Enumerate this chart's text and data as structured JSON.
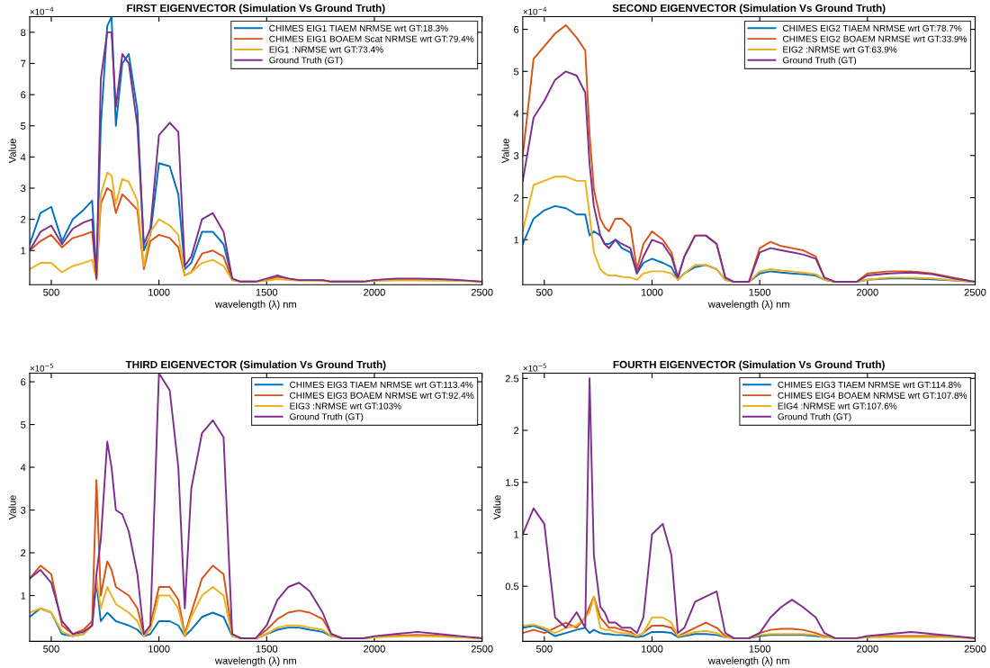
{
  "chart_data": [
    {
      "type": "line",
      "title": "FIRST EIGENVECTOR (Simulation Vs Ground Truth)",
      "xlabel": "wavelength (λ) nm",
      "ylabel": "Value",
      "annotations": [
        "×10$^{−4}$"
      ],
      "xlim": [
        400,
        2500
      ],
      "xticks": [
        500,
        1000,
        1500,
        2000,
        2500
      ],
      "ylim": [
        -0.1,
        8.5
      ],
      "yticks": [
        1,
        2,
        3,
        4,
        5,
        6,
        7,
        8
      ],
      "legend": "top right",
      "grid": false,
      "x": [
        400,
        450,
        500,
        550,
        600,
        650,
        690,
        710,
        730,
        760,
        780,
        800,
        830,
        860,
        900,
        930,
        960,
        1000,
        1050,
        1090,
        1120,
        1150,
        1200,
        1250,
        1300,
        1340,
        1380,
        1450,
        1500,
        1550,
        1600,
        1650,
        1700,
        1760,
        1800,
        1850,
        1950,
        2000,
        2100,
        2200,
        2300,
        2400,
        2500
      ],
      "series": [
        {
          "name": "CHIMES EIG1 TIAEM NRMSE wrt GT:18.3%",
          "color": "#0072bd",
          "values": [
            1.2,
            2.2,
            2.4,
            1.3,
            2.0,
            2.3,
            2.6,
            0.2,
            5.0,
            8.2,
            8.5,
            5.0,
            7.0,
            7.3,
            5.5,
            1.0,
            1.5,
            3.8,
            3.7,
            2.8,
            0.4,
            0.6,
            1.6,
            1.6,
            1.2,
            0.1,
            null,
            null,
            null,
            null,
            null,
            null,
            null,
            null,
            null,
            null,
            null,
            null,
            null,
            null,
            null,
            null,
            null
          ]
        },
        {
          "name": "CHIMES EIG1 BOAEM Scat NRMSE wrt GT:79.4%",
          "color": "#d95319",
          "values": [
            1.0,
            1.3,
            1.5,
            1.1,
            1.4,
            1.5,
            1.6,
            0.1,
            2.5,
            3.0,
            2.9,
            2.2,
            2.8,
            2.6,
            2.3,
            0.4,
            1.3,
            1.5,
            1.4,
            1.1,
            0.2,
            0.3,
            0.9,
            1.0,
            0.8,
            0.05,
            0,
            0,
            0.05,
            0.15,
            0.1,
            0.05,
            0.05,
            0.05,
            0,
            0,
            0,
            0.05,
            0.08,
            0.08,
            0.06,
            0.04,
            0
          ]
        },
        {
          "name": "EIG1 :NRMSE wrt GT:73.4%",
          "color": "#edb120",
          "values": [
            0.4,
            0.6,
            0.6,
            0.3,
            0.5,
            0.6,
            0.7,
            0.05,
            2.8,
            3.5,
            3.4,
            2.5,
            3.3,
            3.2,
            2.6,
            0.5,
            1.6,
            2.0,
            1.8,
            1.5,
            0.2,
            0.3,
            0.6,
            0.7,
            0.5,
            0.05,
            0,
            0,
            0.03,
            0.08,
            0.05,
            0.03,
            0.03,
            0.02,
            0,
            0,
            0,
            0.02,
            0.04,
            0.04,
            0.03,
            0.02,
            0
          ]
        },
        {
          "name": "Ground Truth (GT)",
          "color": "#7e2f8e",
          "values": [
            1.0,
            1.6,
            1.8,
            1.2,
            1.7,
            1.9,
            2.0,
            0.1,
            6.5,
            8.0,
            8.0,
            5.6,
            7.3,
            7.0,
            5.0,
            1.2,
            1.7,
            4.7,
            5.1,
            4.8,
            0.5,
            0.8,
            2.0,
            2.2,
            1.6,
            0.1,
            0,
            0,
            0.1,
            0.2,
            0.1,
            0.05,
            0.05,
            0.05,
            0,
            0,
            0,
            0.05,
            0.1,
            0.1,
            0.08,
            0.05,
            0
          ]
        }
      ]
    },
    {
      "type": "line",
      "title": "SECOND EIGENVECTOR (Simulation Vs Ground Truth)",
      "xlabel": "wavelength (λ) nm",
      "ylabel": "Value",
      "annotations": [
        "×10$^{−4}$"
      ],
      "xlim": [
        400,
        2500
      ],
      "xticks": [
        500,
        1000,
        1500,
        2000,
        2500
      ],
      "ylim": [
        -0.07,
        6.3
      ],
      "yticks": [
        1,
        2,
        3,
        4,
        5,
        6
      ],
      "legend": "top right",
      "grid": false,
      "x": [
        400,
        450,
        500,
        550,
        600,
        650,
        690,
        710,
        730,
        760,
        780,
        800,
        830,
        860,
        900,
        930,
        960,
        1000,
        1050,
        1090,
        1120,
        1150,
        1200,
        1250,
        1300,
        1340,
        1380,
        1450,
        1500,
        1550,
        1600,
        1650,
        1700,
        1760,
        1800,
        1850,
        1950,
        2000,
        2100,
        2200,
        2300,
        2400,
        2500
      ],
      "series": [
        {
          "name": "CHIMES EIG2 TIAEM NRMSE wrt GT:78.7%",
          "color": "#0072bd",
          "values": [
            0.9,
            1.5,
            1.7,
            1.8,
            1.75,
            1.6,
            1.6,
            1.1,
            1.2,
            1.1,
            0.9,
            0.9,
            1.0,
            0.8,
            0.7,
            0.2,
            0.45,
            0.55,
            0.45,
            0.35,
            0.05,
            0.2,
            0.35,
            0.4,
            0.3,
            0.05,
            0,
            0,
            0.2,
            0.25,
            0.22,
            0.2,
            0.18,
            0.15,
            0.05,
            0,
            0,
            0.05,
            0.08,
            0.08,
            0.06,
            0.03,
            0
          ]
        },
        {
          "name": "CHIMES EIG2 BOAEM NRMSE wrt GT:33.9%",
          "color": "#d95319",
          "values": [
            3.0,
            5.3,
            5.6,
            5.9,
            6.1,
            5.8,
            5.5,
            3.5,
            2.2,
            1.5,
            1.3,
            1.2,
            1.5,
            1.5,
            1.3,
            0.3,
            0.9,
            1.2,
            1.0,
            0.7,
            0.1,
            0.6,
            1.1,
            1.1,
            0.9,
            0.1,
            0,
            0,
            0.8,
            0.95,
            0.85,
            0.8,
            0.75,
            0.6,
            0.1,
            0,
            0,
            0.2,
            0.25,
            0.25,
            0.2,
            0.1,
            0
          ]
        },
        {
          "name": "EIG2 :NRMSE wrt GT:63.9%",
          "color": "#edb120",
          "values": [
            1.2,
            2.3,
            2.4,
            2.5,
            2.5,
            2.4,
            2.4,
            1.6,
            0.7,
            0.3,
            0.2,
            0.15,
            0.15,
            0.12,
            0.1,
            0.05,
            0.2,
            0.25,
            0.25,
            0.2,
            0.05,
            0.2,
            0.4,
            0.4,
            0.3,
            0.05,
            0,
            0,
            0.25,
            0.3,
            0.27,
            0.25,
            0.22,
            0.18,
            0.05,
            0,
            0,
            0.05,
            0.1,
            0.1,
            0.08,
            0.04,
            0
          ]
        },
        {
          "name": "Ground Truth (GT)",
          "color": "#7e2f8e",
          "values": [
            2.4,
            3.9,
            4.3,
            4.8,
            5.0,
            4.9,
            4.5,
            2.8,
            1.8,
            1.1,
            0.9,
            0.8,
            1.0,
            0.9,
            0.8,
            0.2,
            0.6,
            1.0,
            0.9,
            0.6,
            0.1,
            0.6,
            1.1,
            1.1,
            0.9,
            0.1,
            0,
            0,
            0.7,
            0.8,
            0.75,
            0.7,
            0.65,
            0.55,
            0.1,
            0,
            0,
            0.15,
            0.2,
            0.22,
            0.18,
            0.08,
            0
          ]
        }
      ]
    },
    {
      "type": "line",
      "title": "THIRD EIGENVECTOR (Simulation Vs Ground Truth)",
      "xlabel": "wavelength (λ) nm",
      "ylabel": "Value",
      "annotations": [
        "×10$^{−5}$"
      ],
      "xlim": [
        400,
        2500
      ],
      "xticks": [
        500,
        1000,
        1500,
        2000,
        2500
      ],
      "ylim": [
        -0.07,
        6.2
      ],
      "yticks": [
        1,
        2,
        3,
        4,
        5,
        6
      ],
      "legend": "top right",
      "grid": false,
      "x": [
        400,
        450,
        500,
        550,
        600,
        650,
        690,
        710,
        730,
        760,
        780,
        800,
        830,
        860,
        900,
        930,
        960,
        1000,
        1050,
        1090,
        1120,
        1150,
        1200,
        1250,
        1300,
        1340,
        1380,
        1450,
        1500,
        1550,
        1600,
        1650,
        1700,
        1760,
        1800,
        1850,
        1950,
        2000,
        2100,
        2200,
        2300,
        2400,
        2500
      ],
      "series": [
        {
          "name": "CHIMES EIG3 TIAEM NRMSE wrt GT:113.4%",
          "color": "#0072bd",
          "values": [
            0.5,
            0.7,
            0.6,
            0.1,
            0.05,
            0.1,
            0.3,
            1.3,
            0.4,
            0.6,
            0.5,
            0.4,
            0.35,
            0.3,
            0.2,
            0.05,
            0.1,
            0.4,
            0.4,
            0.3,
            0.05,
            0.2,
            0.5,
            0.6,
            0.5,
            0.05,
            0,
            0,
            0.1,
            0.2,
            0.25,
            0.25,
            0.2,
            0.15,
            0.05,
            null,
            null,
            null,
            null,
            null,
            null,
            null,
            null
          ]
        },
        {
          "name": "CHIMES EIG3 BOAEM NRMSE wrt GT:92.4%",
          "color": "#d95319",
          "values": [
            1.4,
            1.7,
            1.5,
            0.3,
            0.1,
            0.2,
            0.4,
            3.7,
            1.0,
            1.8,
            1.6,
            1.2,
            1.1,
            1.0,
            0.7,
            0.1,
            0.3,
            1.2,
            1.2,
            0.9,
            0.1,
            0.6,
            1.4,
            1.7,
            1.5,
            0.1,
            0,
            0,
            0.2,
            0.45,
            0.6,
            0.65,
            0.6,
            0.45,
            0.1,
            0,
            0,
            0.03,
            0.06,
            0.08,
            0.06,
            0.03,
            0
          ]
        },
        {
          "name": "EIG3 :NRMSE wrt GT:103%",
          "color": "#edb120",
          "values": [
            0.6,
            0.7,
            0.6,
            0.15,
            0.05,
            0.1,
            0.3,
            1.4,
            0.7,
            1.2,
            1.0,
            0.8,
            0.7,
            0.6,
            0.4,
            0.05,
            0.2,
            1.0,
            1.0,
            0.7,
            0.05,
            0.5,
            1.0,
            1.2,
            1.0,
            0.05,
            0,
            0,
            0.1,
            0.25,
            0.3,
            0.3,
            0.25,
            0.2,
            0.05,
            0,
            0,
            0.02,
            0.04,
            0.05,
            0.04,
            0.02,
            0
          ]
        },
        {
          "name": "Ground Truth (GT)",
          "color": "#7e2f8e",
          "values": [
            1.4,
            1.6,
            1.3,
            0.4,
            0.1,
            0.15,
            0.3,
            1.5,
            2.3,
            4.6,
            4.0,
            3.0,
            2.9,
            2.5,
            1.5,
            0.1,
            0.3,
            6.2,
            5.8,
            4.0,
            0.7,
            3.5,
            4.8,
            5.1,
            4.7,
            0.1,
            0,
            0,
            0.3,
            0.9,
            1.2,
            1.3,
            1.1,
            0.6,
            0.1,
            0,
            0,
            0.05,
            0.1,
            0.15,
            0.1,
            0.05,
            0
          ]
        }
      ]
    },
    {
      "type": "line",
      "title": "FOURTH EIGENVECTOR (Simulation Vs Ground Truth)",
      "xlabel": "wavelength (λ) nm",
      "ylabel": "Value",
      "annotations": [
        "×10$^{−5}$"
      ],
      "xlim": [
        400,
        2500
      ],
      "xticks": [
        500,
        1000,
        1500,
        2000,
        2500
      ],
      "ylim": [
        -0.03,
        2.55
      ],
      "yticks": [
        0.5,
        1,
        1.5,
        2,
        2.5
      ],
      "legend": "top right",
      "grid": false,
      "x": [
        400,
        450,
        500,
        550,
        600,
        650,
        690,
        710,
        730,
        760,
        780,
        800,
        830,
        860,
        900,
        930,
        960,
        1000,
        1050,
        1090,
        1120,
        1150,
        1200,
        1250,
        1300,
        1340,
        1380,
        1450,
        1500,
        1550,
        1600,
        1650,
        1700,
        1760,
        1800,
        1850,
        1950,
        2000,
        2100,
        2200,
        2300,
        2400,
        2500
      ],
      "series": [
        {
          "name": "CHIMES EIG3 TIAEM NRMSE wrt GT:114.8%",
          "color": "#0072bd",
          "values": [
            0.1,
            0.12,
            0.08,
            0.02,
            0.05,
            0.08,
            0.1,
            0.05,
            0.08,
            0.05,
            0.04,
            0.04,
            0.03,
            0.03,
            0.02,
            0.01,
            0.02,
            0.06,
            0.06,
            0.05,
            0.01,
            0.02,
            0.04,
            0.04,
            0.03,
            0.01,
            0,
            0,
            0.02,
            0.03,
            0.03,
            0.03,
            0.03,
            0.02,
            0.01,
            null,
            null,
            null,
            null,
            null,
            null,
            null,
            null
          ]
        },
        {
          "name": "CHIMES EIG4 BOAEM NRMSE wrt GT:107.8%",
          "color": "#d95319",
          "values": [
            0.05,
            0.08,
            0.05,
            0.1,
            0.15,
            0.1,
            0.2,
            0.3,
            0.4,
            0.2,
            0.15,
            0.1,
            0.1,
            0.08,
            0.06,
            0.02,
            0.05,
            0.12,
            0.12,
            0.1,
            0.02,
            0.05,
            0.1,
            0.15,
            0.1,
            0.02,
            0,
            0,
            0.05,
            0.08,
            0.09,
            0.09,
            0.08,
            0.05,
            0.02,
            0,
            0,
            0.01,
            0.02,
            0.02,
            0.02,
            0.01,
            0
          ]
        },
        {
          "name": "EIG4 :NRMSE wrt GT:107.6%",
          "color": "#edb120",
          "values": [
            0.12,
            0.13,
            0.1,
            0.05,
            0.1,
            0.12,
            0.2,
            0.25,
            0.4,
            0.1,
            0.08,
            0.08,
            0.06,
            0.05,
            0.04,
            0.02,
            0.05,
            0.2,
            0.2,
            0.15,
            0.02,
            0.03,
            0.06,
            0.07,
            0.05,
            0.01,
            0,
            0,
            0.03,
            0.04,
            0.04,
            0.04,
            0.04,
            0.03,
            0.01,
            0,
            0,
            0.01,
            0.01,
            0.01,
            0.01,
            0.01,
            0
          ]
        },
        {
          "name": "Ground Truth (GT)",
          "color": "#7e2f8e",
          "values": [
            1.0,
            1.25,
            1.1,
            0.2,
            0.1,
            0.25,
            0.1,
            2.5,
            0.8,
            0.3,
            0.25,
            0.15,
            0.15,
            0.1,
            0.1,
            0.05,
            0.2,
            1.0,
            1.1,
            0.8,
            0.05,
            0.1,
            0.35,
            0.4,
            0.45,
            0.05,
            0,
            0,
            0.05,
            0.2,
            0.3,
            0.37,
            0.3,
            0.2,
            0.05,
            0,
            0,
            0.02,
            0.04,
            0.06,
            0.04,
            0.02,
            0
          ]
        }
      ]
    }
  ]
}
